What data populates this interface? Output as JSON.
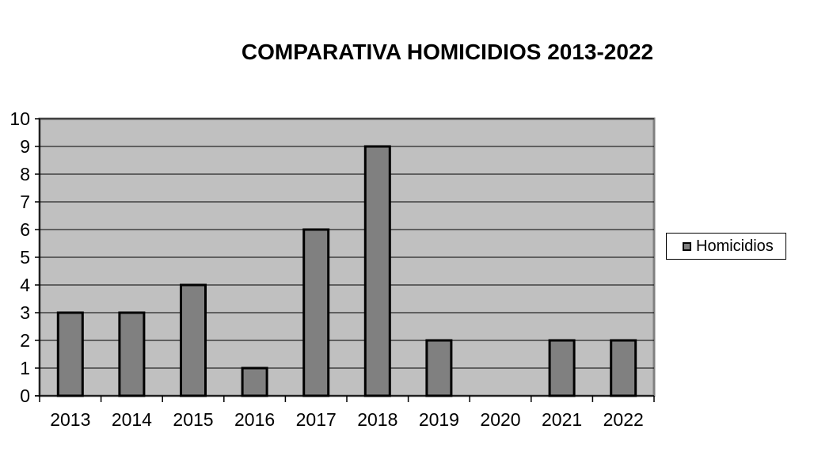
{
  "chart_data": {
    "type": "bar",
    "title": "COMPARATIVA HOMICIDIOS 2013-2022",
    "categories": [
      "2013",
      "2014",
      "2015",
      "2016",
      "2017",
      "2018",
      "2019",
      "2020",
      "2021",
      "2022"
    ],
    "series": [
      {
        "name": "Homicidios",
        "values": [
          3,
          3,
          4,
          1,
          6,
          9,
          2,
          0,
          2,
          2
        ]
      }
    ],
    "xlabel": "",
    "ylabel": "",
    "ylim": [
      0,
      10
    ],
    "yticks": [
      "0",
      "1",
      "2",
      "3",
      "4",
      "5",
      "6",
      "7",
      "8",
      "9",
      "10"
    ],
    "grid": true,
    "legend_position": "right",
    "colors": {
      "bar": "#808080",
      "plot_background": "#c0c0c0",
      "gridline": "#000000"
    }
  }
}
